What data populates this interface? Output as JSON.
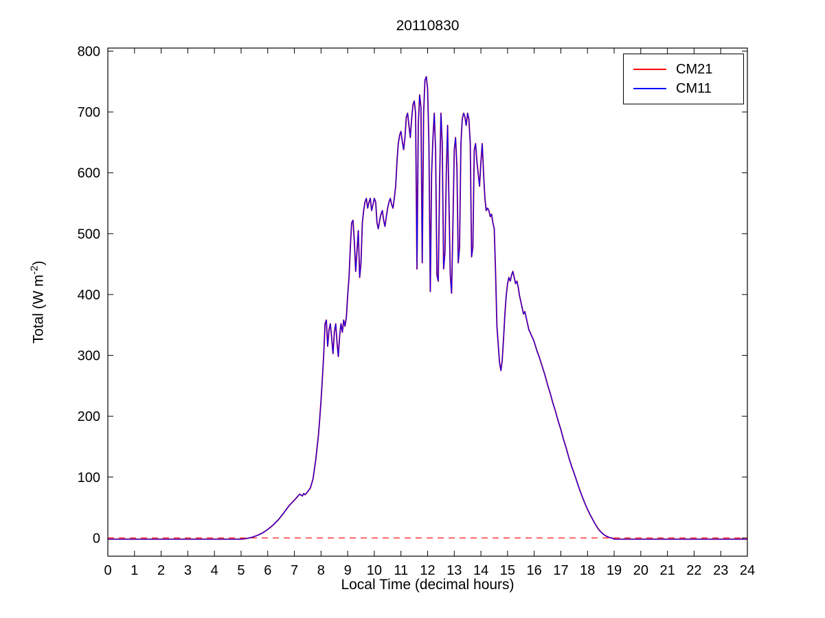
{
  "chart_data": {
    "type": "line",
    "title": "20110830",
    "xlabel": "Local Time (decimal hours)",
    "ylabel": "Total (W m-2)",
    "ylabel_parts": {
      "prefix": "Total (W m",
      "superscript": "-2",
      "suffix": ")"
    },
    "xlim": [
      0,
      24
    ],
    "ylim": [
      -30,
      805
    ],
    "xticks": [
      0,
      1,
      2,
      3,
      4,
      5,
      6,
      7,
      8,
      9,
      10,
      11,
      12,
      13,
      14,
      15,
      16,
      17,
      18,
      19,
      20,
      21,
      22,
      23,
      24
    ],
    "yticks": [
      0,
      100,
      200,
      300,
      400,
      500,
      600,
      700,
      800
    ],
    "grid": false,
    "legend_position": "top-right",
    "background": "#ffffff",
    "axis_color": "#000000",
    "reference_line": {
      "y": 0,
      "color": "#ff0000",
      "style": "dashed"
    },
    "series": [
      {
        "name": "CM21",
        "color": "#ff0000",
        "width": 1.9,
        "note_overlap": "coincides with CM11"
      },
      {
        "name": "CM11",
        "color": "#0000ff",
        "width": 1.2
      }
    ],
    "points": [
      [
        0,
        -2
      ],
      [
        1,
        -2
      ],
      [
        2,
        -2
      ],
      [
        3,
        -2
      ],
      [
        4,
        -2
      ],
      [
        5,
        -2
      ],
      [
        5.2,
        -1
      ],
      [
        5.4,
        1
      ],
      [
        5.6,
        4
      ],
      [
        5.8,
        8
      ],
      [
        6,
        14
      ],
      [
        6.2,
        21
      ],
      [
        6.4,
        30
      ],
      [
        6.6,
        41
      ],
      [
        6.8,
        53
      ],
      [
        7,
        62
      ],
      [
        7.1,
        67
      ],
      [
        7.2,
        72
      ],
      [
        7.3,
        69
      ],
      [
        7.35,
        73
      ],
      [
        7.4,
        71
      ],
      [
        7.5,
        76
      ],
      [
        7.6,
        82
      ],
      [
        7.7,
        97
      ],
      [
        7.8,
        128
      ],
      [
        7.9,
        168
      ],
      [
        7.95,
        195
      ],
      [
        8,
        225
      ],
      [
        8.05,
        262
      ],
      [
        8.1,
        300
      ],
      [
        8.15,
        352
      ],
      [
        8.2,
        358
      ],
      [
        8.25,
        315
      ],
      [
        8.3,
        342
      ],
      [
        8.35,
        352
      ],
      [
        8.4,
        328
      ],
      [
        8.45,
        303
      ],
      [
        8.5,
        338
      ],
      [
        8.55,
        352
      ],
      [
        8.6,
        322
      ],
      [
        8.65,
        298
      ],
      [
        8.7,
        333
      ],
      [
        8.75,
        352
      ],
      [
        8.8,
        338
      ],
      [
        8.85,
        358
      ],
      [
        8.9,
        348
      ],
      [
        8.95,
        362
      ],
      [
        9,
        398
      ],
      [
        9.05,
        428
      ],
      [
        9.1,
        478
      ],
      [
        9.15,
        518
      ],
      [
        9.2,
        522
      ],
      [
        9.25,
        488
      ],
      [
        9.3,
        438
      ],
      [
        9.35,
        472
      ],
      [
        9.4,
        505
      ],
      [
        9.45,
        428
      ],
      [
        9.5,
        452
      ],
      [
        9.55,
        518
      ],
      [
        9.6,
        538
      ],
      [
        9.65,
        552
      ],
      [
        9.7,
        558
      ],
      [
        9.75,
        542
      ],
      [
        9.8,
        552
      ],
      [
        9.85,
        558
      ],
      [
        9.9,
        538
      ],
      [
        9.95,
        548
      ],
      [
        10,
        558
      ],
      [
        10.05,
        552
      ],
      [
        10.1,
        518
      ],
      [
        10.15,
        508
      ],
      [
        10.2,
        522
      ],
      [
        10.25,
        532
      ],
      [
        10.3,
        538
      ],
      [
        10.35,
        522
      ],
      [
        10.4,
        512
      ],
      [
        10.45,
        528
      ],
      [
        10.5,
        542
      ],
      [
        10.55,
        552
      ],
      [
        10.6,
        558
      ],
      [
        10.65,
        548
      ],
      [
        10.7,
        542
      ],
      [
        10.75,
        558
      ],
      [
        10.8,
        578
      ],
      [
        10.85,
        618
      ],
      [
        10.9,
        648
      ],
      [
        10.95,
        662
      ],
      [
        11,
        668
      ],
      [
        11.05,
        652
      ],
      [
        11.1,
        638
      ],
      [
        11.15,
        658
      ],
      [
        11.2,
        692
      ],
      [
        11.25,
        698
      ],
      [
        11.3,
        678
      ],
      [
        11.35,
        658
      ],
      [
        11.4,
        688
      ],
      [
        11.45,
        712
      ],
      [
        11.5,
        718
      ],
      [
        11.55,
        698
      ],
      [
        11.6,
        442
      ],
      [
        11.65,
        678
      ],
      [
        11.7,
        728
      ],
      [
        11.75,
        708
      ],
      [
        11.8,
        452
      ],
      [
        11.85,
        698
      ],
      [
        11.9,
        752
      ],
      [
        11.95,
        758
      ],
      [
        12,
        738
      ],
      [
        12.05,
        648
      ],
      [
        12.1,
        405
      ],
      [
        12.15,
        598
      ],
      [
        12.2,
        658
      ],
      [
        12.25,
        698
      ],
      [
        12.3,
        638
      ],
      [
        12.35,
        432
      ],
      [
        12.4,
        422
      ],
      [
        12.45,
        588
      ],
      [
        12.5,
        698
      ],
      [
        12.55,
        648
      ],
      [
        12.6,
        442
      ],
      [
        12.65,
        468
      ],
      [
        12.7,
        598
      ],
      [
        12.75,
        678
      ],
      [
        12.8,
        558
      ],
      [
        12.85,
        432
      ],
      [
        12.9,
        402
      ],
      [
        12.95,
        518
      ],
      [
        13,
        638
      ],
      [
        13.05,
        658
      ],
      [
        13.1,
        608
      ],
      [
        13.15,
        452
      ],
      [
        13.2,
        478
      ],
      [
        13.25,
        648
      ],
      [
        13.3,
        688
      ],
      [
        13.35,
        698
      ],
      [
        13.4,
        692
      ],
      [
        13.45,
        678
      ],
      [
        13.5,
        698
      ],
      [
        13.55,
        688
      ],
      [
        13.6,
        648
      ],
      [
        13.65,
        462
      ],
      [
        13.7,
        478
      ],
      [
        13.75,
        638
      ],
      [
        13.8,
        648
      ],
      [
        13.85,
        618
      ],
      [
        13.9,
        598
      ],
      [
        13.95,
        578
      ],
      [
        14,
        618
      ],
      [
        14.05,
        648
      ],
      [
        14.1,
        598
      ],
      [
        14.15,
        558
      ],
      [
        14.2,
        538
      ],
      [
        14.25,
        542
      ],
      [
        14.3,
        538
      ],
      [
        14.35,
        528
      ],
      [
        14.4,
        532
      ],
      [
        14.45,
        518
      ],
      [
        14.5,
        508
      ],
      [
        14.55,
        438
      ],
      [
        14.6,
        348
      ],
      [
        14.65,
        318
      ],
      [
        14.7,
        288
      ],
      [
        14.75,
        275
      ],
      [
        14.8,
        292
      ],
      [
        14.85,
        328
      ],
      [
        14.9,
        368
      ],
      [
        14.95,
        398
      ],
      [
        15,
        418
      ],
      [
        15.05,
        428
      ],
      [
        15.1,
        422
      ],
      [
        15.15,
        432
      ],
      [
        15.2,
        438
      ],
      [
        15.25,
        428
      ],
      [
        15.3,
        418
      ],
      [
        15.35,
        422
      ],
      [
        15.4,
        412
      ],
      [
        15.45,
        398
      ],
      [
        15.5,
        388
      ],
      [
        15.55,
        378
      ],
      [
        15.6,
        368
      ],
      [
        15.65,
        372
      ],
      [
        15.7,
        362
      ],
      [
        15.75,
        352
      ],
      [
        15.8,
        342
      ],
      [
        15.85,
        338
      ],
      [
        15.9,
        332
      ],
      [
        15.95,
        328
      ],
      [
        16,
        322
      ],
      [
        16.1,
        308
      ],
      [
        16.2,
        296
      ],
      [
        16.3,
        282
      ],
      [
        16.4,
        268
      ],
      [
        16.5,
        252
      ],
      [
        16.6,
        238
      ],
      [
        16.7,
        222
      ],
      [
        16.8,
        208
      ],
      [
        16.9,
        192
      ],
      [
        17,
        178
      ],
      [
        17.1,
        162
      ],
      [
        17.2,
        148
      ],
      [
        17.3,
        132
      ],
      [
        17.4,
        118
      ],
      [
        17.5,
        106
      ],
      [
        17.6,
        93
      ],
      [
        17.7,
        80
      ],
      [
        17.8,
        68
      ],
      [
        17.9,
        57
      ],
      [
        18,
        47
      ],
      [
        18.1,
        38
      ],
      [
        18.2,
        30
      ],
      [
        18.3,
        22
      ],
      [
        18.4,
        15
      ],
      [
        18.5,
        10
      ],
      [
        18.6,
        6
      ],
      [
        18.7,
        3
      ],
      [
        18.8,
        1
      ],
      [
        18.9,
        0
      ],
      [
        19,
        -2
      ],
      [
        20,
        -2
      ],
      [
        21,
        -2
      ],
      [
        22,
        -2
      ],
      [
        23,
        -2
      ],
      [
        24,
        -2
      ]
    ]
  },
  "legend": {
    "items": [
      {
        "label": "CM21",
        "color": "#ff0000"
      },
      {
        "label": "CM11",
        "color": "#0000ff"
      }
    ]
  }
}
